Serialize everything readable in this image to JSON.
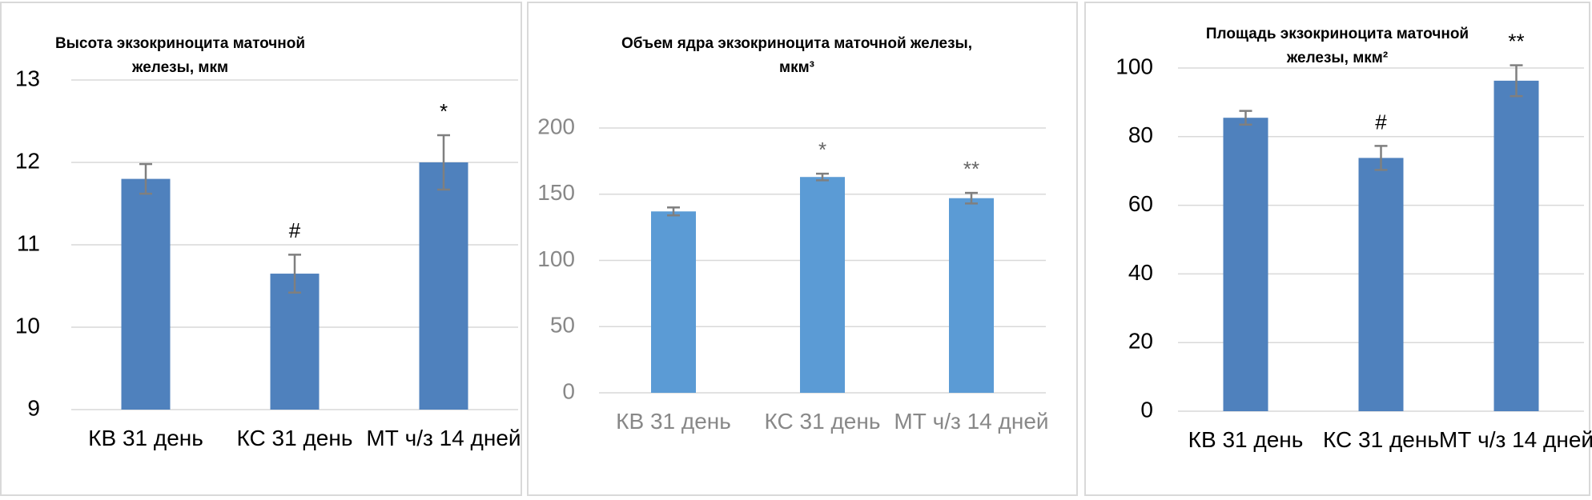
{
  "chart_data": [
    {
      "type": "bar",
      "title": "Высота экзокриноцита маточной железы, мкм",
      "categories": [
        "КВ 31 день",
        "КС 31 день",
        "МТ ч/з 14 дней"
      ],
      "values": [
        11.8,
        10.65,
        12.0
      ],
      "errors": [
        0.18,
        0.23,
        0.33
      ],
      "annotations": [
        null,
        "#",
        "*"
      ],
      "color": "#4f81bd",
      "ylim": [
        9,
        13
      ],
      "yticks": [
        9,
        10,
        11,
        12,
        13
      ],
      "grid": true
    },
    {
      "type": "bar",
      "title": "Объем ядра экзокриноцита маточной железы, мкм³",
      "categories": [
        "КВ 31 день",
        "КС 31 день",
        "МТ ч/з 14 дней"
      ],
      "values": [
        137,
        163,
        147
      ],
      "errors": [
        3,
        2.5,
        4
      ],
      "annotations": [
        null,
        "*",
        "**"
      ],
      "color": "#5b9bd5",
      "ylim": [
        0,
        200
      ],
      "yticks": [
        0,
        50,
        100,
        150,
        200
      ],
      "grid": true
    },
    {
      "type": "bar",
      "title": "Площадь экзокриноцита маточной железы, мкм²",
      "categories": [
        "КВ 31 день",
        "КС 31 день",
        "МТ ч/з 14 дней"
      ],
      "values": [
        85.5,
        73.8,
        96.3
      ],
      "errors": [
        2,
        3.5,
        4.5
      ],
      "annotations": [
        null,
        "#",
        "**"
      ],
      "color": "#4f81bd",
      "ylim": [
        0,
        100
      ],
      "yticks": [
        0,
        20,
        40,
        60,
        80,
        100
      ],
      "grid": true
    }
  ]
}
